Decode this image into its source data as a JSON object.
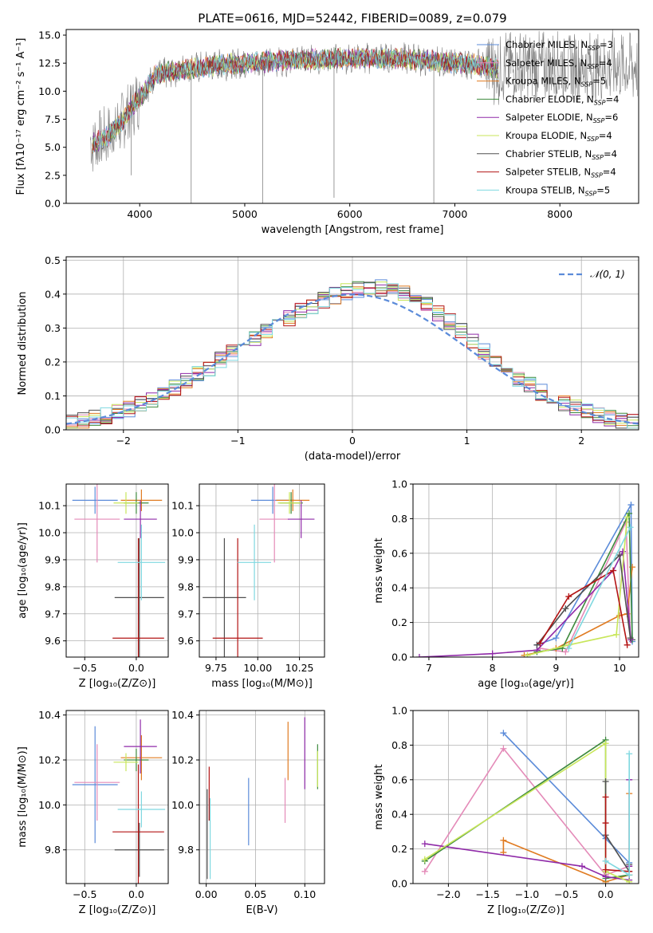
{
  "figure_title": "PLATE=0616, MJD=52442, FIBERID=0089, z=0.079",
  "colors": {
    "Chabrier MILES": "#5b8bd9",
    "Salpeter MILES": "#e48ab8",
    "Kroupa MILES": "#e07b21",
    "Chabrier ELODIE": "#3d8a3d",
    "Salpeter ELODIE": "#8f2aa8",
    "Kroupa ELODIE": "#c8e65a",
    "Chabrier STELIB": "#505050",
    "Salpeter STELIB": "#b31414",
    "Kroupa STELIB": "#7fd8e0",
    "data": "#808080"
  },
  "chart_data": [
    {
      "id": "spectrum",
      "type": "line",
      "xlabel": "wavelength [Angstrom, rest frame]",
      "ylabel": "Flux [fλ10⁻¹⁷ erg cm⁻² s⁻¹ A⁻¹]",
      "xlim": [
        3300,
        8750
      ],
      "ylim": [
        0,
        15.5
      ],
      "xticks": [
        4000,
        5000,
        6000,
        7000,
        8000
      ],
      "yticks": [
        0.0,
        2.5,
        5.0,
        7.5,
        10.0,
        12.5,
        15.0
      ],
      "grid": false,
      "legend_position": "top-right",
      "legend": [
        {
          "label": "Chabrier MILES, N",
          "sub": "SSP",
          "tail": "=3"
        },
        {
          "label": "Salpeter MILES, N",
          "sub": "SSP",
          "tail": "=4"
        },
        {
          "label": "Kroupa MILES, N",
          "sub": "SSP",
          "tail": "=5"
        },
        {
          "label": "Chabrier ELODIE, N",
          "sub": "SSP",
          "tail": "=4"
        },
        {
          "label": "Salpeter ELODIE, N",
          "sub": "SSP",
          "tail": "=6"
        },
        {
          "label": "Kroupa ELODIE, N",
          "sub": "SSP",
          "tail": "=4"
        },
        {
          "label": "Chabrier STELIB, N",
          "sub": "SSP",
          "tail": "=4"
        },
        {
          "label": "Salpeter STELIB, N",
          "sub": "SSP",
          "tail": "=4"
        },
        {
          "label": "Kroupa STELIB, N",
          "sub": "SSP",
          "tail": "=5"
        }
      ],
      "continuum_knots": [
        [
          3550,
          5.3
        ],
        [
          3700,
          6.0
        ],
        [
          3850,
          7.5
        ],
        [
          3950,
          8.9
        ],
        [
          4050,
          10.0
        ],
        [
          4150,
          11.5
        ],
        [
          4400,
          11.9
        ],
        [
          4700,
          12.3
        ],
        [
          5000,
          12.5
        ],
        [
          5500,
          12.8
        ],
        [
          6000,
          12.9
        ],
        [
          6500,
          12.9
        ],
        [
          6900,
          12.6
        ],
        [
          7200,
          12.4
        ],
        [
          7400,
          12.0
        ]
      ]
    },
    {
      "id": "residuals",
      "type": "histogram",
      "xlabel": "(data-model)/error",
      "ylabel": "Normed distribution",
      "xlim": [
        -2.5,
        2.5
      ],
      "ylim": [
        0,
        0.51
      ],
      "xticks": [
        -2,
        -1,
        0,
        1,
        2
      ],
      "yticks": [
        0.0,
        0.1,
        0.2,
        0.3,
        0.4,
        0.5
      ],
      "grid": true,
      "legend_position": "top-right",
      "legend_label": "𝒩(0, 1)",
      "reference": {
        "name": "N(0,1)",
        "mean": 0,
        "sigma": 1
      }
    },
    {
      "id": "age-vs-Z",
      "type": "errorbar",
      "xlabel": "Z [log₁₀(Z/Z⊙)]",
      "ylabel": "age  [log₁₀(age/yr)]",
      "xlim": [
        -0.68,
        0.31
      ],
      "ylim": [
        9.54,
        10.18
      ],
      "xticks": [
        -0.5,
        0.0
      ],
      "yticks": [
        9.6,
        9.7,
        9.8,
        9.9,
        10.0,
        10.1
      ],
      "grid": true,
      "points": [
        {
          "model": "Chabrier MILES",
          "x": -0.4,
          "xerr": 0.22,
          "y": 10.12,
          "yerr": 0.05
        },
        {
          "model": "Salpeter MILES",
          "x": -0.38,
          "xerr": 0.22,
          "y": 10.05,
          "yerr": 0.16
        },
        {
          "model": "Kroupa MILES",
          "x": 0.05,
          "xerr": 0.2,
          "y": 10.12,
          "yerr": 0.04
        },
        {
          "model": "Chabrier ELODIE",
          "x": 0.0,
          "xerr": 0.12,
          "y": 10.11,
          "yerr": 0.04
        },
        {
          "model": "Salpeter ELODIE",
          "x": 0.04,
          "xerr": 0.16,
          "y": 10.05,
          "yerr": 0.07
        },
        {
          "model": "Kroupa ELODIE",
          "x": -0.1,
          "xerr": 0.12,
          "y": 10.11,
          "yerr": 0.04
        },
        {
          "model": "Chabrier STELIB",
          "x": 0.03,
          "xerr": 0.24,
          "y": 9.76,
          "yerr": 0.22
        },
        {
          "model": "Salpeter STELIB",
          "x": 0.02,
          "xerr": 0.25,
          "y": 9.61,
          "yerr": 0.37
        },
        {
          "model": "Kroupa STELIB",
          "x": 0.05,
          "xerr": 0.23,
          "y": 9.89,
          "yerr": 0.14
        }
      ]
    },
    {
      "id": "age-vs-mass",
      "type": "errorbar",
      "xlabel": "mass [log₁₀(M/M⊙)]",
      "ylabel": "",
      "xlim": [
        9.65,
        10.4
      ],
      "ylim": [
        9.54,
        10.18
      ],
      "xticks": [
        9.75,
        10.0,
        10.25
      ],
      "yticks": [
        9.6,
        9.7,
        9.8,
        9.9,
        10.0,
        10.1
      ],
      "grid": true,
      "points": [
        {
          "model": "Chabrier MILES",
          "x": 10.09,
          "xerr": 0.13,
          "y": 10.12,
          "yerr": 0.05
        },
        {
          "model": "Salpeter MILES",
          "x": 10.1,
          "xerr": 0.09,
          "y": 10.05,
          "yerr": 0.16
        },
        {
          "model": "Kroupa MILES",
          "x": 10.21,
          "xerr": 0.1,
          "y": 10.12,
          "yerr": 0.04
        },
        {
          "model": "Chabrier ELODIE",
          "x": 10.2,
          "xerr": 0.07,
          "y": 10.11,
          "yerr": 0.04
        },
        {
          "model": "Salpeter ELODIE",
          "x": 10.26,
          "xerr": 0.08,
          "y": 10.05,
          "yerr": 0.07
        },
        {
          "model": "Kroupa ELODIE",
          "x": 10.19,
          "xerr": 0.07,
          "y": 10.11,
          "yerr": 0.04
        },
        {
          "model": "Chabrier STELIB",
          "x": 9.8,
          "xerr": 0.13,
          "y": 9.76,
          "yerr": 0.22
        },
        {
          "model": "Salpeter STELIB",
          "x": 9.88,
          "xerr": 0.15,
          "y": 9.61,
          "yerr": 0.37
        },
        {
          "model": "Kroupa STELIB",
          "x": 9.98,
          "xerr": 0.1,
          "y": 9.89,
          "yerr": 0.14
        }
      ]
    },
    {
      "id": "mass-weight-vs-age",
      "type": "line",
      "xlabel": "age  [log₁₀(age/yr)]",
      "ylabel": "mass weight",
      "xlim": [
        6.75,
        10.3
      ],
      "ylim": [
        0,
        1.0
      ],
      "xticks": [
        7,
        8,
        9,
        10
      ],
      "yticks": [
        0.0,
        0.2,
        0.4,
        0.6,
        0.8,
        1.0
      ],
      "grid": true,
      "series": [
        {
          "model": "Chabrier MILES",
          "x": [
            8.7,
            9.0,
            10.18,
            10.2
          ],
          "y": [
            0.07,
            0.11,
            0.88,
            0.09
          ]
        },
        {
          "model": "Salpeter MILES",
          "x": [
            8.75,
            9.15,
            10.1,
            10.17
          ],
          "y": [
            0.05,
            0.03,
            0.78,
            0.1
          ]
        },
        {
          "model": "Kroupa MILES",
          "x": [
            8.5,
            9.0,
            10.0,
            10.12,
            10.2
          ],
          "y": [
            0.01,
            0.05,
            0.24,
            0.25,
            0.52
          ]
        },
        {
          "model": "Chabrier ELODIE",
          "x": [
            8.7,
            9.1,
            10.15,
            10.2
          ],
          "y": [
            0.03,
            0.05,
            0.83,
            0.1
          ]
        },
        {
          "model": "Salpeter ELODIE",
          "x": [
            6.85,
            8.0,
            8.7,
            9.9,
            10.05,
            10.18
          ],
          "y": [
            0.0,
            0.02,
            0.04,
            0.5,
            0.61,
            0.1
          ]
        },
        {
          "model": "Kroupa ELODIE",
          "x": [
            8.55,
            9.2,
            9.95,
            10.12
          ],
          "y": [
            0.01,
            0.07,
            0.13,
            0.81
          ]
        },
        {
          "model": "Chabrier STELIB",
          "x": [
            8.7,
            9.15,
            10.0,
            10.17
          ],
          "y": [
            0.07,
            0.28,
            0.59,
            0.11
          ]
        },
        {
          "model": "Salpeter STELIB",
          "x": [
            8.75,
            9.2,
            9.9,
            10.12
          ],
          "y": [
            0.08,
            0.35,
            0.5,
            0.07
          ]
        },
        {
          "model": "Kroupa STELIB",
          "x": [
            9.2,
            10.17
          ],
          "y": [
            0.05,
            0.75
          ]
        }
      ]
    },
    {
      "id": "mass-vs-Z",
      "type": "errorbar",
      "xlabel": "Z [log₁₀(Z/Z⊙)]",
      "ylabel": "mass [log₁₀(M/M⊙)]",
      "xlim": [
        -0.68,
        0.31
      ],
      "ylim": [
        9.65,
        10.42
      ],
      "xticks": [
        -0.5,
        0.0
      ],
      "yticks": [
        9.8,
        10.0,
        10.2,
        10.4
      ],
      "grid": true,
      "points": [
        {
          "model": "Chabrier MILES",
          "x": -0.4,
          "xerr": 0.22,
          "y": 10.09,
          "yerr": 0.26
        },
        {
          "model": "Salpeter MILES",
          "x": -0.38,
          "xerr": 0.22,
          "y": 10.1,
          "yerr": 0.17
        },
        {
          "model": "Kroupa MILES",
          "x": 0.05,
          "xerr": 0.2,
          "y": 10.21,
          "yerr": 0.1
        },
        {
          "model": "Chabrier ELODIE",
          "x": 0.0,
          "xerr": 0.12,
          "y": 10.2,
          "yerr": 0.05
        },
        {
          "model": "Salpeter ELODIE",
          "x": 0.04,
          "xerr": 0.16,
          "y": 10.26,
          "yerr": 0.12
        },
        {
          "model": "Kroupa ELODIE",
          "x": -0.1,
          "xerr": 0.12,
          "y": 10.19,
          "yerr": 0.04
        },
        {
          "model": "Chabrier STELIB",
          "x": 0.03,
          "xerr": 0.24,
          "y": 9.8,
          "yerr": 0.12
        },
        {
          "model": "Salpeter STELIB",
          "x": 0.02,
          "xerr": 0.25,
          "y": 9.88,
          "yerr": 0.3
        },
        {
          "model": "Kroupa STELIB",
          "x": 0.05,
          "xerr": 0.23,
          "y": 9.98,
          "yerr": 0.08
        }
      ]
    },
    {
      "id": "mass-vs-EBV",
      "type": "errorbar",
      "xlabel": "E(B-V)",
      "ylabel": "",
      "xlim": [
        -0.007,
        0.12
      ],
      "ylim": [
        9.65,
        10.42
      ],
      "xticks": [
        0.0,
        0.05,
        0.1
      ],
      "yticks": [
        9.8,
        10.0,
        10.2,
        10.4
      ],
      "grid": true,
      "points": [
        {
          "model": "Chabrier MILES",
          "x": 0.043,
          "xerr": 0,
          "y": 9.97,
          "yerr": 0.15
        },
        {
          "model": "Salpeter MILES",
          "x": 0.08,
          "xerr": 0,
          "y": 10.02,
          "yerr": 0.1
        },
        {
          "model": "Kroupa MILES",
          "x": 0.083,
          "xerr": 0,
          "y": 10.24,
          "yerr": 0.13
        },
        {
          "model": "Chabrier ELODIE",
          "x": 0.113,
          "xerr": 0,
          "y": 10.17,
          "yerr": 0.1
        },
        {
          "model": "Salpeter ELODIE",
          "x": 0.1,
          "xerr": 0,
          "y": 10.23,
          "yerr": 0.16
        },
        {
          "model": "Kroupa ELODIE",
          "x": 0.113,
          "xerr": 0,
          "y": 10.16,
          "yerr": 0.08
        },
        {
          "model": "Chabrier STELIB",
          "x": 0.001,
          "xerr": 0,
          "y": 9.87,
          "yerr": 0.2
        },
        {
          "model": "Salpeter STELIB",
          "x": 0.003,
          "xerr": 0,
          "y": 10.05,
          "yerr": 0.12
        },
        {
          "model": "Kroupa STELIB",
          "x": 0.004,
          "xerr": 0,
          "y": 9.85,
          "yerr": 0.18
        }
      ]
    },
    {
      "id": "mass-weight-vs-Z",
      "type": "line",
      "xlabel": "Z [log₁₀(Z/Z⊙)]",
      "ylabel": "mass weight",
      "xlim": [
        -2.45,
        0.42
      ],
      "ylim": [
        0,
        1.0
      ],
      "xticks": [
        -2.0,
        -1.5,
        -1.0,
        -0.5,
        0.0
      ],
      "yticks": [
        0.0,
        0.2,
        0.4,
        0.6,
        0.8,
        1.0
      ],
      "grid": true,
      "series": [
        {
          "model": "Chabrier MILES",
          "x": [
            -1.3,
            0.0,
            0.3
          ],
          "y": [
            0.87,
            0.26,
            0.12
          ]
        },
        {
          "model": "Salpeter MILES",
          "x": [
            -2.3,
            -1.3,
            0.0,
            0.3
          ],
          "y": [
            0.07,
            0.78,
            0.05,
            0.1
          ]
        },
        {
          "model": "Kroupa MILES",
          "x": [
            -1.3,
            -1.3,
            0.0,
            0.3,
            0.3
          ],
          "y": [
            0.18,
            0.25,
            0.01,
            0.05,
            0.52
          ]
        },
        {
          "model": "Chabrier ELODIE",
          "x": [
            -2.3,
            0.0,
            0.0,
            0.3
          ],
          "y": [
            0.13,
            0.83,
            0.03,
            0.05
          ]
        },
        {
          "model": "Salpeter ELODIE",
          "x": [
            -2.3,
            -0.3,
            0.0,
            0.3,
            0.3,
            0.3
          ],
          "y": [
            0.23,
            0.1,
            0.04,
            0.02,
            0.1,
            0.6
          ]
        },
        {
          "model": "Kroupa ELODIE",
          "x": [
            -2.3,
            0.0,
            0.0,
            0.3
          ],
          "y": [
            0.14,
            0.81,
            0.07,
            0.01
          ]
        },
        {
          "model": "Chabrier STELIB",
          "x": [
            0.0,
            0.0,
            0.3,
            0.3
          ],
          "y": [
            0.59,
            0.28,
            0.07,
            0.11
          ]
        },
        {
          "model": "Salpeter STELIB",
          "x": [
            0.0,
            0.0,
            0.0,
            0.3
          ],
          "y": [
            0.5,
            0.35,
            0.08,
            0.07
          ]
        },
        {
          "model": "Kroupa STELIB",
          "x": [
            0.0,
            0.3,
            0.3
          ],
          "y": [
            0.13,
            0.05,
            0.75
          ]
        }
      ]
    }
  ]
}
